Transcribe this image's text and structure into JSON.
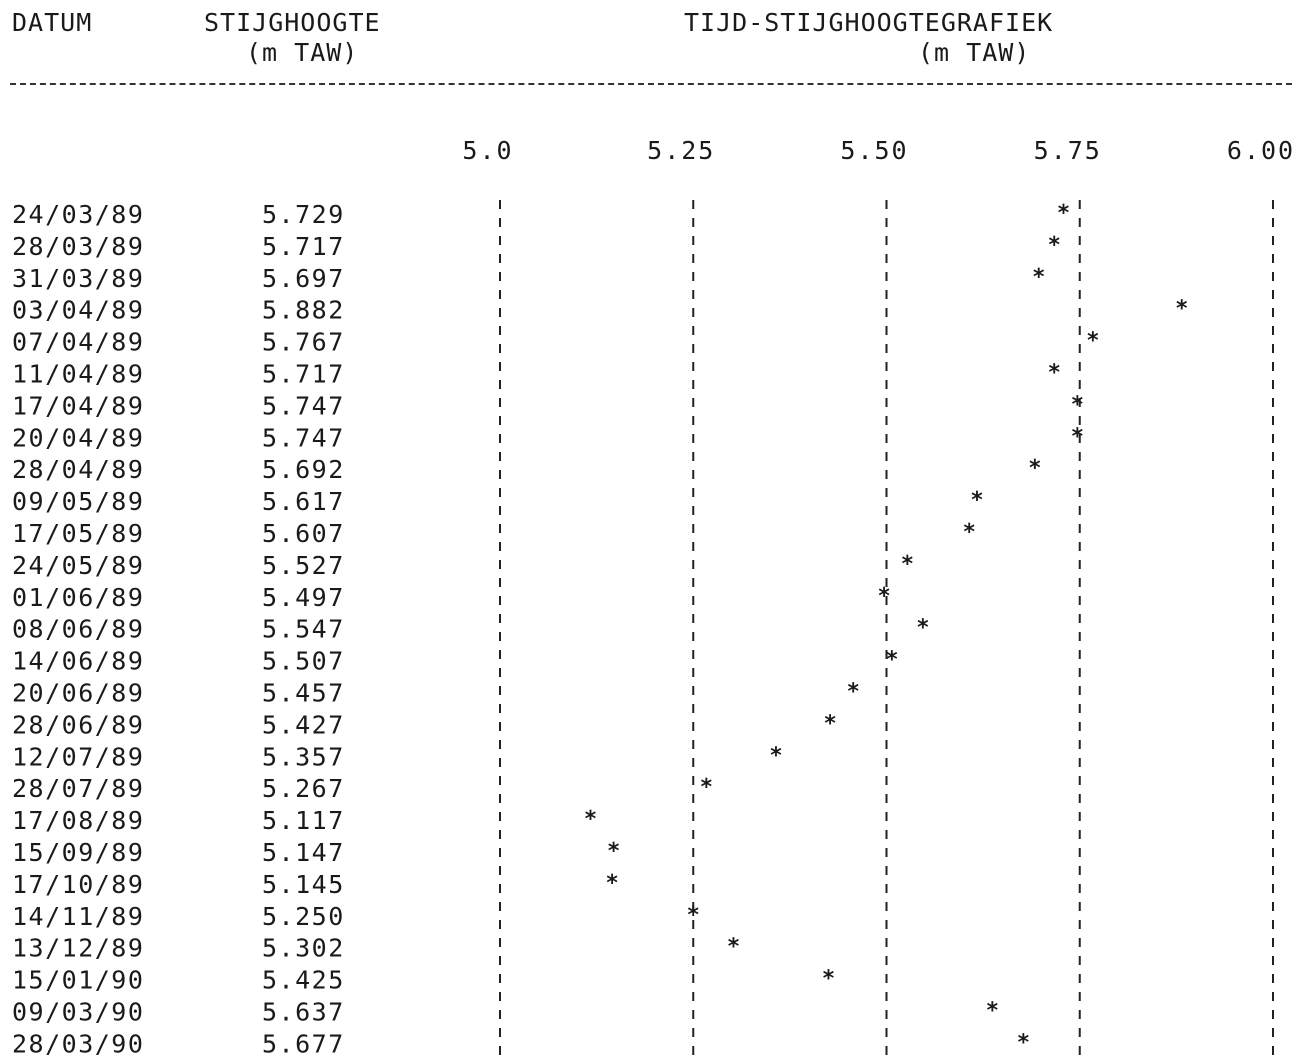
{
  "headers": {
    "col1": "DATUM",
    "col2_line1": "STIJGHOOGTE",
    "col2_line2": "(m TAW)",
    "col3_line1": "TIJD-STIJGHOOGTEGRAFIEK",
    "col3_line2": "(m TAW)"
  },
  "chart_data": {
    "type": "scatter",
    "title": "TIJD-STIJGHOOGTEGRAFIEK",
    "xlabel": "(m TAW)",
    "x_axis_position": "top",
    "xlim": [
      5.0,
      6.0
    ],
    "x_ticks": [
      "5.0",
      "5.25",
      "5.50",
      "5.75",
      "6.00"
    ],
    "x_tick_values": [
      5.0,
      5.25,
      5.5,
      5.75,
      6.0
    ],
    "grid": "vertical dashed lines at each tick",
    "marker": "*",
    "dates": [
      "24/03/89",
      "28/03/89",
      "31/03/89",
      "03/04/89",
      "07/04/89",
      "11/04/89",
      "17/04/89",
      "20/04/89",
      "28/04/89",
      "09/05/89",
      "17/05/89",
      "24/05/89",
      "01/06/89",
      "08/06/89",
      "14/06/89",
      "20/06/89",
      "28/06/89",
      "12/07/89",
      "28/07/89",
      "17/08/89",
      "15/09/89",
      "17/10/89",
      "14/11/89",
      "13/12/89",
      "15/01/90",
      "09/03/90",
      "28/03/90"
    ],
    "values": [
      "5.729",
      "5.717",
      "5.697",
      "5.882",
      "5.767",
      "5.717",
      "5.747",
      "5.747",
      "5.692",
      "5.617",
      "5.607",
      "5.527",
      "5.497",
      "5.547",
      "5.507",
      "5.457",
      "5.427",
      "5.357",
      "5.267",
      "5.117",
      "5.147",
      "5.145",
      "5.250",
      "5.302",
      "5.425",
      "5.637",
      "5.677"
    ]
  }
}
